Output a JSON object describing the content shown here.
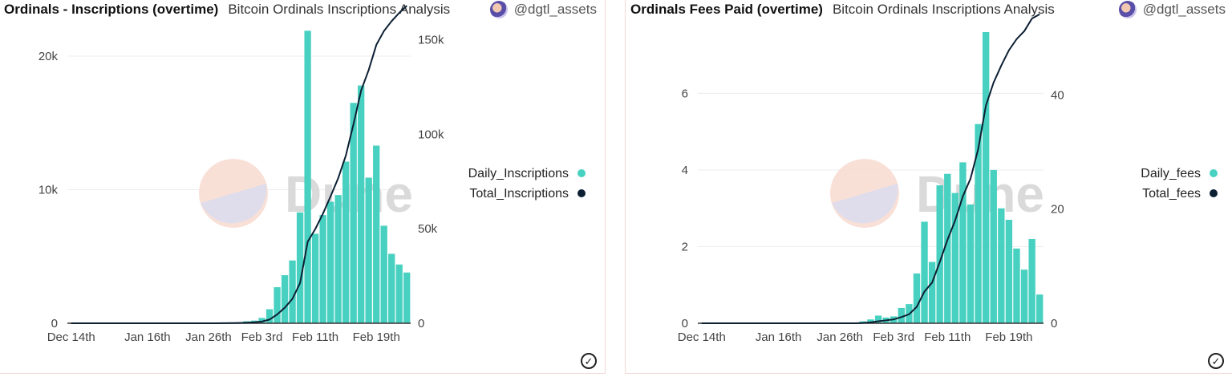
{
  "colors": {
    "bar": "#48d1c1",
    "line": "#0c1f33",
    "grid": "#ececec"
  },
  "icons": {
    "avatar": "avatar-icon",
    "check": "check-circle-icon"
  },
  "watermark": "Dune",
  "panels": [
    {
      "title": "Ordinals - Inscriptions (overtime)",
      "subtitle": "Bitcoin Ordinals Inscriptions Analysis",
      "author": "@dgtl_assets",
      "check_icon": "check-circle-icon"
    },
    {
      "title": "Ordinals Fees Paid (overtime)",
      "subtitle": "Bitcoin Ordinals Inscriptions Analysis",
      "author": "@dgtl_assets",
      "check_icon": "check-circle-icon"
    }
  ],
  "chart_data": [
    {
      "type": "bar",
      "x_ticks": [
        "Dec 14th",
        "Jan 16th",
        "Jan 26th",
        "Feb 3rd",
        "Feb 11th",
        "Feb 19th"
      ],
      "x_tick_index": [
        0,
        10,
        18,
        25,
        32,
        40
      ],
      "ylim_left": [
        0,
        21800
      ],
      "ylim_right": [
        0,
        154000
      ],
      "yticks_left": [
        {
          "value": 0,
          "label": "0"
        },
        {
          "value": 10000,
          "label": "10k"
        },
        {
          "value": 20000,
          "label": "20k"
        }
      ],
      "yticks_right": [
        {
          "value": 0,
          "label": "0"
        },
        {
          "value": 50000,
          "label": "50k"
        },
        {
          "value": 100000,
          "label": "100k"
        },
        {
          "value": 150000,
          "label": "150k"
        }
      ],
      "legend": [
        {
          "name": "Daily_Inscriptions",
          "kind": "bar"
        },
        {
          "name": "Total_Inscriptions",
          "kind": "line"
        }
      ],
      "series": [
        {
          "name": "Daily_Inscriptions",
          "axis": "left",
          "values": [
            0,
            0,
            0,
            0,
            0,
            0,
            0,
            0,
            0,
            0,
            0,
            0,
            0,
            0,
            0,
            0,
            0,
            0,
            0,
            0,
            30,
            50,
            80,
            150,
            200,
            400,
            1050,
            2700,
            3600,
            4700,
            8300,
            21900,
            6700,
            8100,
            9100,
            9600,
            12100,
            16500,
            17800,
            10900,
            13300,
            7300,
            5200,
            4400,
            3800
          ]
        },
        {
          "name": "Total_Inscriptions",
          "axis": "right",
          "values": [
            0,
            0,
            0,
            0,
            0,
            0,
            0,
            0,
            0,
            0,
            0,
            0,
            0,
            0,
            0,
            0,
            0,
            0,
            0,
            0,
            30,
            80,
            160,
            310,
            510,
            910,
            1960,
            4660,
            8260,
            12960,
            21260,
            43160,
            49860,
            57960,
            67060,
            76660,
            88760,
            105260,
            123060,
            133960,
            147260,
            154560,
            159760,
            164160,
            167960
          ]
        }
      ]
    },
    {
      "type": "bar",
      "x_ticks": [
        "Dec 14th",
        "Jan 16th",
        "Jan 26th",
        "Feb 3rd",
        "Feb 11th",
        "Feb 19th"
      ],
      "x_tick_index": [
        0,
        10,
        18,
        25,
        32,
        40
      ],
      "ylim_left": [
        0,
        7.6
      ],
      "ylim_right": [
        0,
        51
      ],
      "yticks_left": [
        {
          "value": 0,
          "label": "0"
        },
        {
          "value": 2,
          "label": "2"
        },
        {
          "value": 4,
          "label": "4"
        },
        {
          "value": 6,
          "label": "6"
        }
      ],
      "yticks_right": [
        {
          "value": 0,
          "label": "0"
        },
        {
          "value": 20,
          "label": "20"
        },
        {
          "value": 40,
          "label": "40"
        }
      ],
      "legend": [
        {
          "name": "Daily_fees",
          "kind": "bar"
        },
        {
          "name": "Total_fees",
          "kind": "line"
        }
      ],
      "series": [
        {
          "name": "Daily_fees",
          "axis": "left",
          "values": [
            0,
            0,
            0,
            0,
            0,
            0,
            0,
            0,
            0,
            0,
            0,
            0,
            0,
            0,
            0,
            0,
            0,
            0,
            0,
            0,
            0,
            0.05,
            0.1,
            0.2,
            0.15,
            0.18,
            0.4,
            0.5,
            1.3,
            2.65,
            1.6,
            3.6,
            3.9,
            3.4,
            4.2,
            3.1,
            5.2,
            7.6,
            4.0,
            3.0,
            2.7,
            1.95,
            1.4,
            2.2,
            0.75
          ]
        },
        {
          "name": "Total_fees",
          "axis": "right",
          "values": [
            0,
            0,
            0,
            0,
            0,
            0,
            0,
            0,
            0,
            0,
            0,
            0,
            0,
            0,
            0,
            0,
            0,
            0,
            0,
            0,
            0,
            0.05,
            0.15,
            0.35,
            0.5,
            0.68,
            1.08,
            1.58,
            2.88,
            5.53,
            7.13,
            10.73,
            14.63,
            18.03,
            22.23,
            25.33,
            30.53,
            38.13,
            42.13,
            45.13,
            47.83,
            49.78,
            51.18,
            53.38,
            54.13
          ]
        }
      ]
    }
  ]
}
